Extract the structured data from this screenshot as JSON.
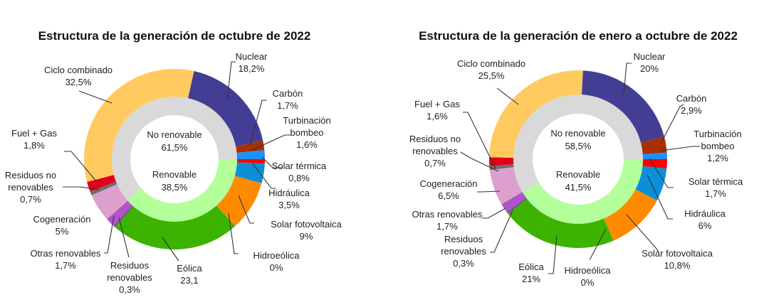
{
  "chart_data": [
    {
      "type": "pie",
      "subtype": "nested-donut",
      "title": "Estructura de la generación de octubre de 2022",
      "inner_ring": [
        {
          "name": "No renovable",
          "value": 61.5,
          "value_label": "61,5%",
          "color": "#d9d9d9"
        },
        {
          "name": "Renovable",
          "value": 38.5,
          "value_label": "38,5%",
          "color": "#b3ff99"
        }
      ],
      "outer_ring": [
        {
          "name": "Solar térmica",
          "value": 0.8,
          "value_label": "0,8%",
          "color": "#ff0000",
          "group": "Renovable"
        },
        {
          "name": "Hidráulica",
          "value": 3.5,
          "value_label": "3,5%",
          "color": "#0a8fd8",
          "group": "Renovable"
        },
        {
          "name": "Solar fotovoltaica",
          "value": 9,
          "value_label": "9%",
          "color": "#ff8a00",
          "group": "Renovable"
        },
        {
          "name": "Hidroeólica",
          "value": 0,
          "value_label": "0%",
          "color": "#0070c0",
          "group": "Renovable"
        },
        {
          "name": "Eólica",
          "value": 23.1,
          "value_label": "23,1",
          "color": "#3cb300",
          "group": "Renovable"
        },
        {
          "name": "Residuos renovables",
          "value": 0.3,
          "value_label": "0,3%",
          "color": "#7a3fa0",
          "group": "Renovable"
        },
        {
          "name": "Otras renovables",
          "value": 1.7,
          "value_label": "1,7%",
          "color": "#b055c8",
          "group": "Renovable"
        },
        {
          "name": "Cogeneración",
          "value": 5,
          "value_label": "5%",
          "color": "#dda0cc",
          "group": "No renovable"
        },
        {
          "name": "Residuos no renovables",
          "value": 0.7,
          "value_label": "0,7%",
          "color": "#6e6e6e",
          "group": "No renovable"
        },
        {
          "name": "Fuel + Gas",
          "value": 1.8,
          "value_label": "1,8%",
          "color": "#e0001a",
          "group": "No renovable"
        },
        {
          "name": "Ciclo combinado",
          "value": 32.5,
          "value_label": "32,5%",
          "color": "#ffcb60",
          "group": "No renovable"
        },
        {
          "name": "Nuclear",
          "value": 18.2,
          "value_label": "18,2%",
          "color": "#433e94",
          "group": "No renovable"
        },
        {
          "name": "Carbón",
          "value": 1.7,
          "value_label": "1,7%",
          "color": "#a83000",
          "group": "No renovable"
        },
        {
          "name": "Turbinación bombeo",
          "value": 1.6,
          "value_label": "1,6%",
          "color": "#1e90ff",
          "group": "No renovable"
        }
      ]
    },
    {
      "type": "pie",
      "subtype": "nested-donut",
      "title": "Estructura de la generación de enero a octubre de 2022",
      "inner_ring": [
        {
          "name": "No renovable",
          "value": 58.5,
          "value_label": "58,5%",
          "color": "#d9d9d9"
        },
        {
          "name": "Renovable",
          "value": 41.5,
          "value_label": "41,5%",
          "color": "#b3ff99"
        }
      ],
      "outer_ring": [
        {
          "name": "Solar térmica",
          "value": 1.7,
          "value_label": "1,7%",
          "color": "#ff0000",
          "group": "Renovable"
        },
        {
          "name": "Hidráulica",
          "value": 6,
          "value_label": "6%",
          "color": "#0a8fd8",
          "group": "Renovable"
        },
        {
          "name": "Solar fotovoltaica",
          "value": 10.8,
          "value_label": "10,8%",
          "color": "#ff8a00",
          "group": "Renovable"
        },
        {
          "name": "Hidroeólica",
          "value": 0,
          "value_label": "0%",
          "color": "#0070c0",
          "group": "Renovable"
        },
        {
          "name": "Eólica",
          "value": 21,
          "value_label": "21%",
          "color": "#3cb300",
          "group": "Renovable"
        },
        {
          "name": "Residuos renovables",
          "value": 0.3,
          "value_label": "0,3%",
          "color": "#7a3fa0",
          "group": "Renovable"
        },
        {
          "name": "Otras renovables",
          "value": 1.7,
          "value_label": "1,7%",
          "color": "#b055c8",
          "group": "Renovable"
        },
        {
          "name": "Cogeneración",
          "value": 6.5,
          "value_label": "6,5%",
          "color": "#dda0cc",
          "group": "No renovable"
        },
        {
          "name": "Residuos no renovables",
          "value": 0.7,
          "value_label": "0,7%",
          "color": "#6e6e6e",
          "group": "No renovable"
        },
        {
          "name": "Fuel + Gas",
          "value": 1.6,
          "value_label": "1,6%",
          "color": "#e0001a",
          "group": "No renovable"
        },
        {
          "name": "Ciclo combinado",
          "value": 25.5,
          "value_label": "25,5%",
          "color": "#ffcb60",
          "group": "No renovable"
        },
        {
          "name": "Nuclear",
          "value": 20,
          "value_label": "20%",
          "color": "#433e94",
          "group": "No renovable"
        },
        {
          "name": "Carbón",
          "value": 2.9,
          "value_label": "2,9%",
          "color": "#a83000",
          "group": "No renovable"
        },
        {
          "name": "Turbinación bombeo",
          "value": 1.2,
          "value_label": "1,2%",
          "color": "#1e90ff",
          "group": "No renovable"
        }
      ]
    }
  ]
}
